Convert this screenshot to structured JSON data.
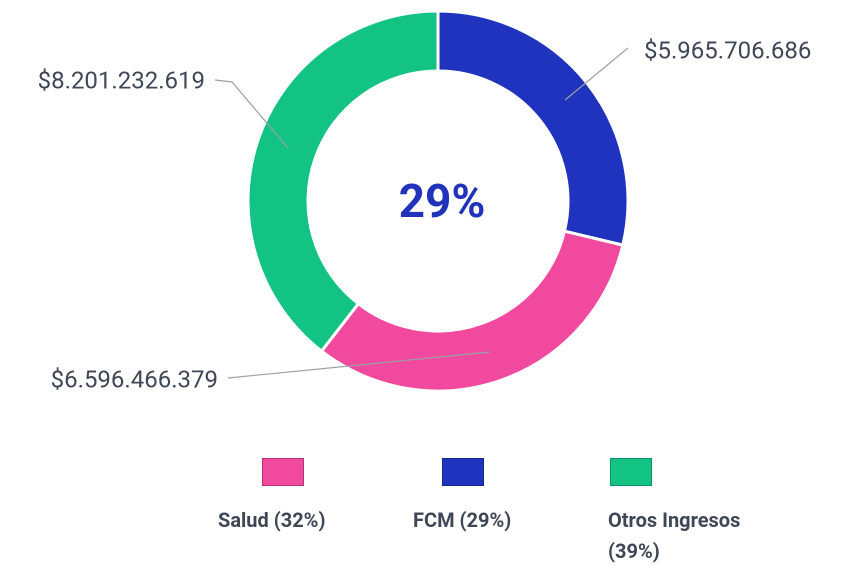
{
  "chart_data": {
    "type": "pie",
    "donut": true,
    "center_text": "29%",
    "categories": [
      "FCM (29%)",
      "Salud (32%)",
      "Otros Ingresos (39%)"
    ],
    "values": [
      5965706686,
      6596466379,
      8201232619
    ],
    "value_labels": [
      "$5.965.706.686",
      "$6.596.466.379",
      "$8.201.232.619"
    ],
    "colors": [
      "#1f33be",
      "#f0499e",
      "#13c384"
    ]
  }
}
